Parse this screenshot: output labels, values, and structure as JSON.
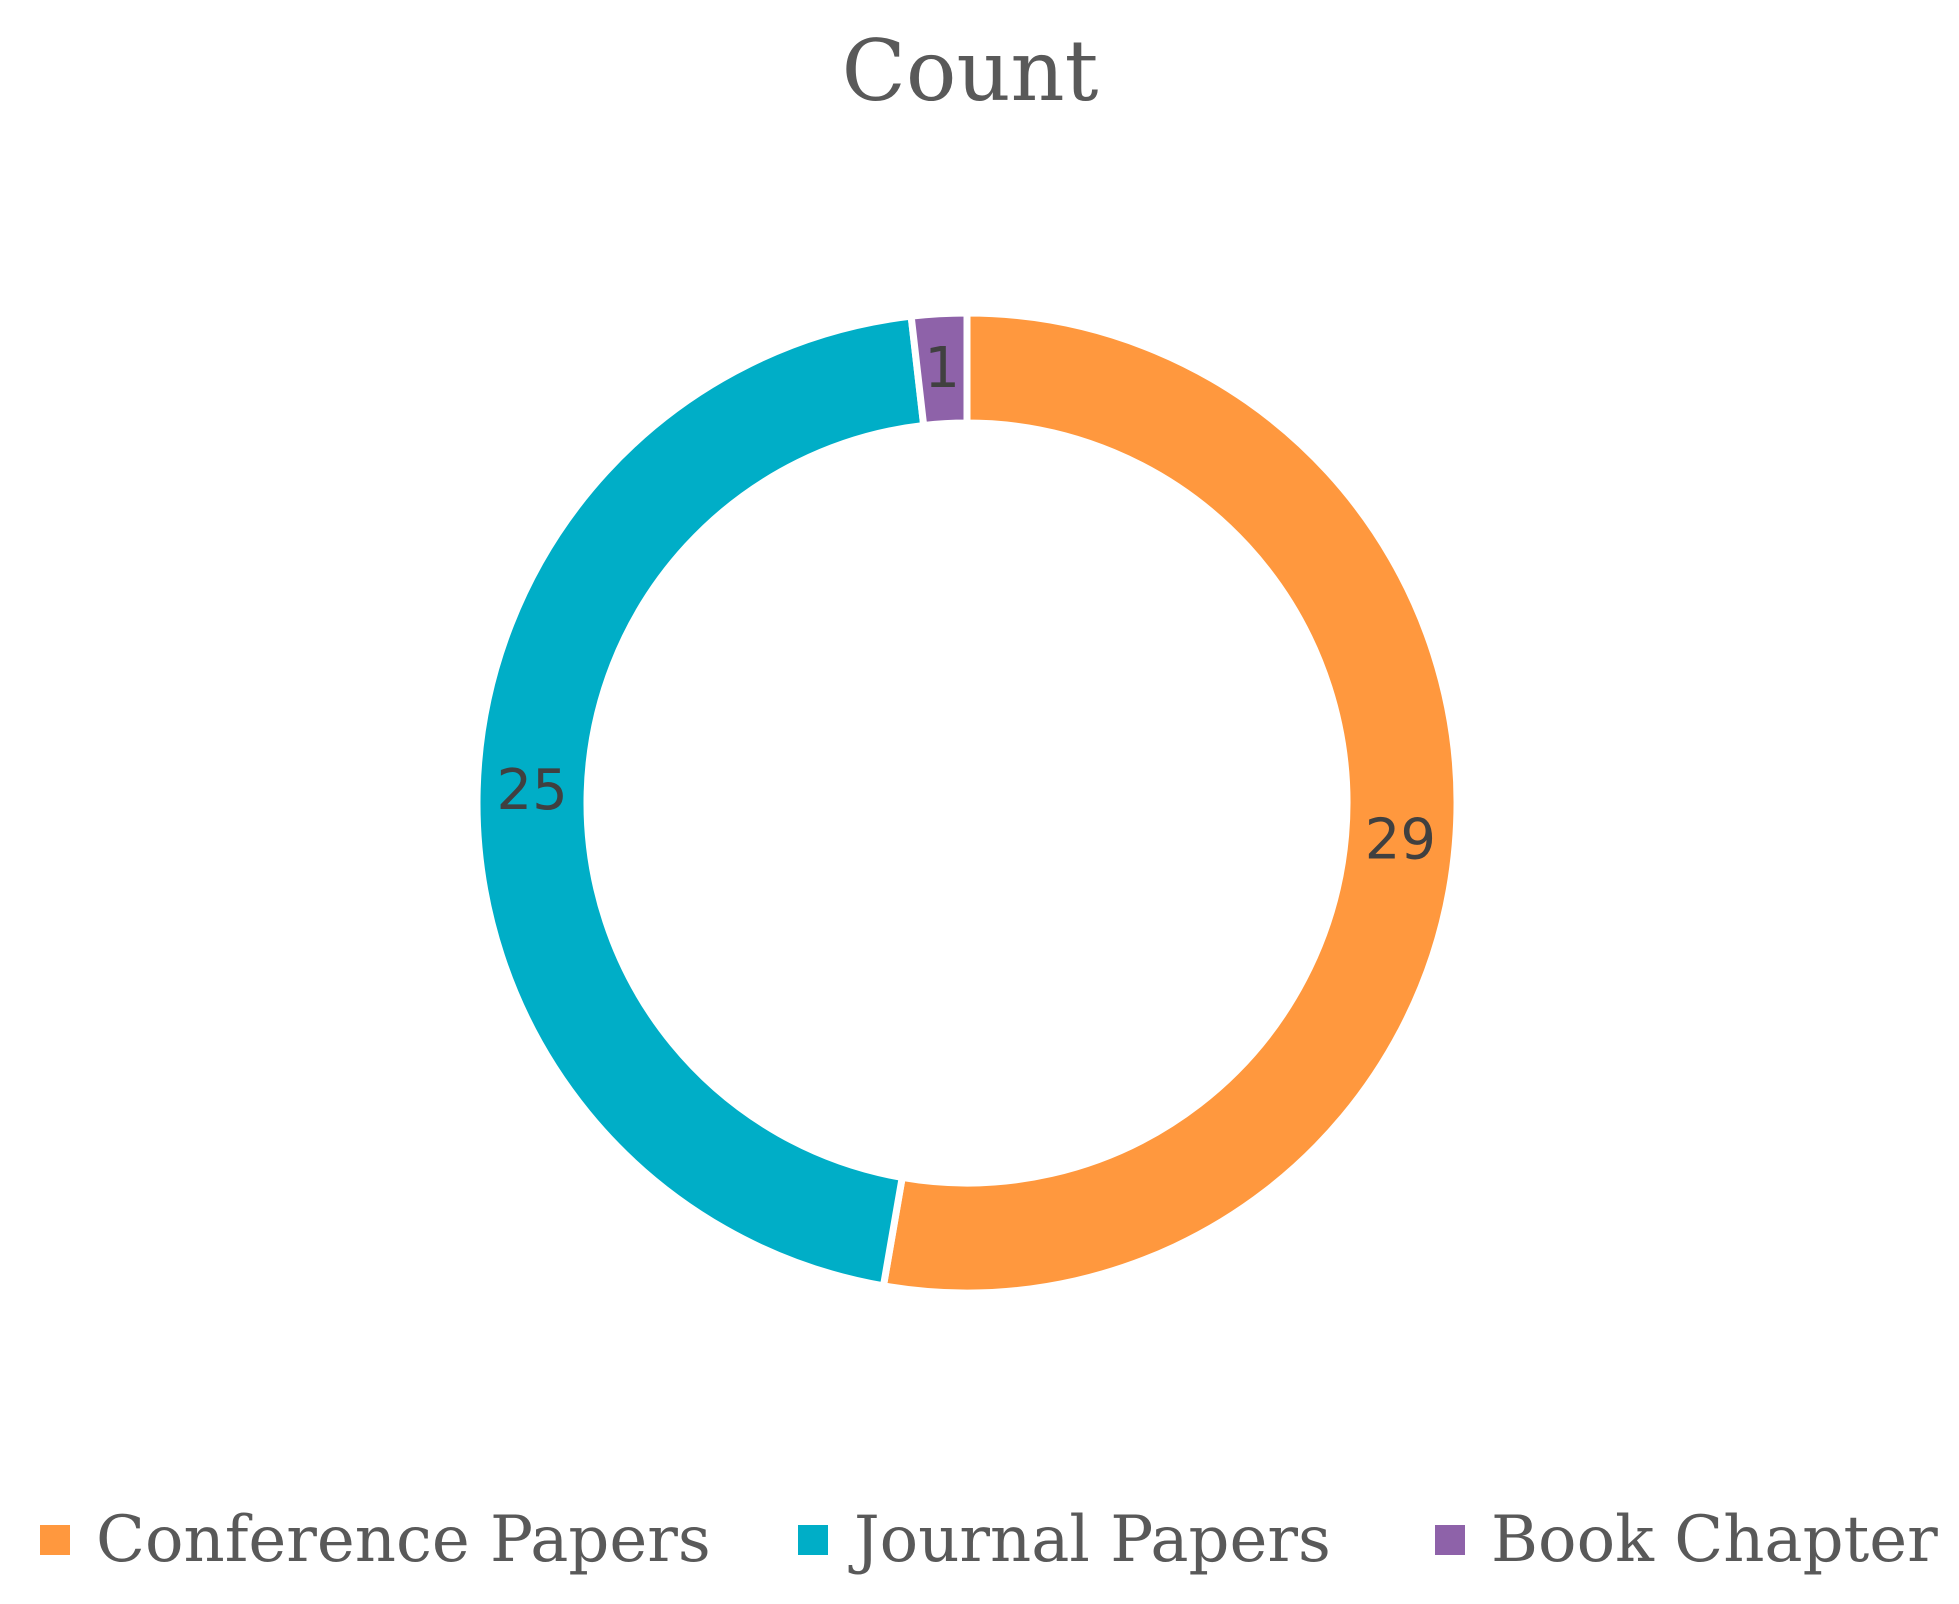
{
  "chart_data": {
    "type": "pie",
    "variant": "donut",
    "title": "Count",
    "legend": "bottom",
    "categories": [
      "Conference Papers",
      "Journal Papers",
      "Book Chapter"
    ],
    "values": [
      29,
      25,
      1
    ],
    "value_labels": [
      "29",
      "25",
      "1"
    ],
    "colors": [
      "#FF983E",
      "#00AEC7",
      "#8E62A9"
    ]
  }
}
